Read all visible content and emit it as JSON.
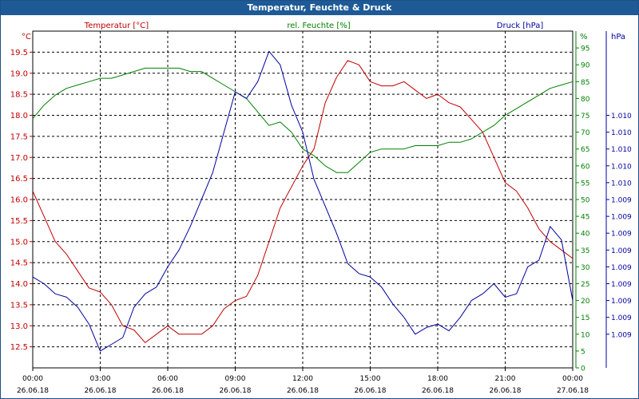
{
  "window": {
    "title": "Temperatur, Feuchte & Druck"
  },
  "chart_data": {
    "type": "line",
    "title": "Temperatur, Feuchte & Druck",
    "grid": true,
    "x_tick_times": [
      "00:00",
      "03:00",
      "06:00",
      "09:00",
      "12:00",
      "15:00",
      "18:00",
      "21:00",
      "00:00"
    ],
    "x_tick_dates": [
      "26.06.18",
      "26.06.18",
      "26.06.18",
      "26.06.18",
      "26.06.18",
      "26.06.18",
      "26.06.18",
      "26.06.18",
      "27.06.18"
    ],
    "xlim_hours": [
      0,
      24
    ],
    "axes": {
      "temperature": {
        "label": "Temperatur [°C]",
        "unit": "°C",
        "ylim": [
          12.0,
          20.0
        ],
        "ticks": [
          "12.5",
          "13.0",
          "13.5",
          "14.0",
          "14.5",
          "15.0",
          "15.5",
          "16.0",
          "16.5",
          "17.0",
          "17.5",
          "18.0",
          "18.5",
          "19.0",
          "19.5"
        ],
        "color": "#c00000"
      },
      "humidity": {
        "label": "rel. Feuchte [%]",
        "unit": "%",
        "ylim": [
          0,
          100
        ],
        "ticks": [
          "0",
          "5",
          "10",
          "15",
          "20",
          "25",
          "30",
          "35",
          "40",
          "45",
          "50",
          "55",
          "60",
          "65",
          "70",
          "75",
          "80",
          "85",
          "90",
          "95"
        ],
        "color": "#008000"
      },
      "pressure": {
        "label": "Druck [hPa]",
        "unit": "hPa",
        "ylim": [
          0,
          100
        ],
        "ticks": [
          "1.009",
          "1.009",
          "1.009",
          "1.009",
          "1.009",
          "1.009",
          "1.009",
          "1.009",
          "1.009",
          "1.010",
          "1.010",
          "1.010",
          "1.010",
          "1.010"
        ],
        "tick_positions": [
          10,
          15,
          20,
          25,
          30,
          35,
          40,
          45,
          50,
          55,
          60,
          65,
          70,
          75
        ],
        "color": "#0000a0"
      }
    },
    "series": [
      {
        "name": "Temperatur [°C]",
        "axis": "temperature",
        "color": "#c00000",
        "x": [
          0.0,
          0.5,
          1.0,
          1.5,
          2.0,
          2.5,
          3.0,
          3.5,
          4.0,
          4.5,
          5.0,
          5.5,
          6.0,
          6.5,
          7.0,
          7.5,
          8.0,
          8.5,
          9.0,
          9.5,
          10.0,
          10.5,
          11.0,
          11.5,
          12.0,
          12.5,
          13.0,
          13.5,
          14.0,
          14.5,
          15.0,
          15.5,
          16.0,
          16.5,
          17.0,
          17.5,
          18.0,
          18.5,
          19.0,
          19.5,
          20.0,
          20.5,
          21.0,
          21.5,
          22.0,
          22.5,
          23.0,
          23.5,
          24.0
        ],
        "y": [
          16.2,
          15.6,
          15.0,
          14.7,
          14.3,
          13.9,
          13.8,
          13.5,
          13.0,
          12.9,
          12.6,
          12.8,
          13.0,
          12.8,
          12.8,
          12.8,
          13.0,
          13.4,
          13.6,
          13.7,
          14.2,
          15.0,
          15.8,
          16.3,
          16.8,
          17.2,
          18.3,
          18.9,
          19.3,
          19.2,
          18.8,
          18.7,
          18.7,
          18.8,
          18.6,
          18.4,
          18.5,
          18.3,
          18.2,
          17.9,
          17.6,
          17.0,
          16.4,
          16.2,
          15.8,
          15.3,
          15.0,
          14.8,
          14.6
        ]
      },
      {
        "name": "rel. Feuchte [%]",
        "axis": "humidity",
        "color": "#008000",
        "x": [
          0.0,
          0.5,
          1.0,
          1.5,
          2.0,
          2.5,
          3.0,
          3.5,
          4.0,
          4.5,
          5.0,
          5.5,
          6.0,
          6.5,
          7.0,
          7.5,
          8.0,
          8.5,
          9.0,
          9.5,
          10.0,
          10.5,
          11.0,
          11.5,
          12.0,
          12.5,
          13.0,
          13.5,
          14.0,
          14.5,
          15.0,
          15.5,
          16.0,
          16.5,
          17.0,
          17.5,
          18.0,
          18.5,
          19.0,
          19.5,
          20.0,
          20.5,
          21.0,
          21.5,
          22.0,
          22.5,
          23.0,
          23.5,
          24.0
        ],
        "y": [
          74,
          78,
          81,
          83,
          84,
          85,
          86,
          86,
          87,
          88,
          89,
          89,
          89,
          89,
          88,
          88,
          86,
          84,
          82,
          80,
          76,
          72,
          73,
          70,
          65,
          63,
          60,
          58,
          58,
          61,
          64,
          65,
          65,
          65,
          66,
          66,
          66,
          67,
          67,
          68,
          70,
          72,
          75,
          77,
          79,
          81,
          83,
          84,
          85
        ]
      },
      {
        "name": "Druck [hPa]",
        "axis": "pressure",
        "color": "#0000a0",
        "x": [
          0.0,
          0.5,
          1.0,
          1.5,
          2.0,
          2.5,
          3.0,
          3.5,
          4.0,
          4.5,
          5.0,
          5.5,
          6.0,
          6.5,
          7.0,
          7.5,
          8.0,
          8.5,
          9.0,
          9.5,
          10.0,
          10.5,
          11.0,
          11.5,
          12.0,
          12.5,
          13.0,
          13.5,
          14.0,
          14.5,
          15.0,
          15.5,
          16.0,
          16.5,
          17.0,
          17.5,
          18.0,
          18.5,
          19.0,
          19.5,
          20.0,
          20.5,
          21.0,
          21.5,
          22.0,
          22.5,
          23.0,
          23.5,
          24.0
        ],
        "y": [
          27,
          25,
          22,
          21,
          18,
          13,
          5,
          7,
          9,
          18,
          22,
          24,
          30,
          35,
          42,
          50,
          58,
          70,
          82,
          80,
          85,
          94,
          90,
          78,
          70,
          56,
          48,
          40,
          31,
          28,
          27,
          24,
          19,
          15,
          10,
          12,
          13,
          11,
          15,
          20,
          22,
          25,
          21,
          22,
          30,
          32,
          42,
          38,
          20
        ]
      }
    ]
  }
}
